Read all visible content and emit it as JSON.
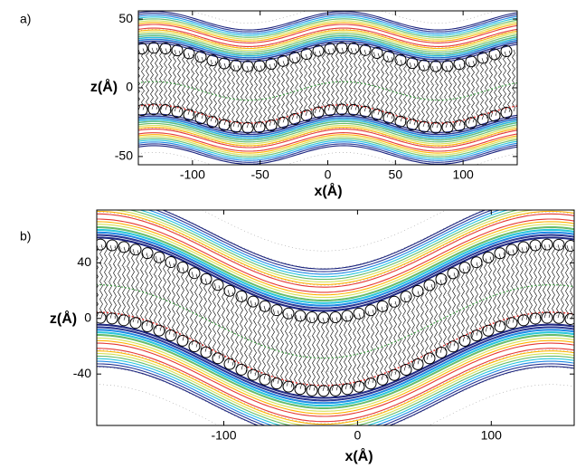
{
  "chart_data": [
    {
      "type": "contour",
      "panel_label": "a)",
      "xlabel": "x(Å)",
      "ylabel": "z(Å)",
      "xlim": [
        -140,
        140
      ],
      "ylim": [
        -56,
        56
      ],
      "xticks": [
        -100,
        -50,
        0,
        50,
        100
      ],
      "yticks": [
        -50,
        0,
        50
      ]
    },
    {
      "type": "contour",
      "panel_label": "b)",
      "xlabel": "x(Å)",
      "ylabel": "z(Å)",
      "xlim": [
        -195,
        162
      ],
      "ylim": [
        -77,
        78
      ],
      "xticks": [
        -100,
        0,
        100
      ],
      "yticks": [
        -40,
        0,
        40
      ]
    }
  ]
}
